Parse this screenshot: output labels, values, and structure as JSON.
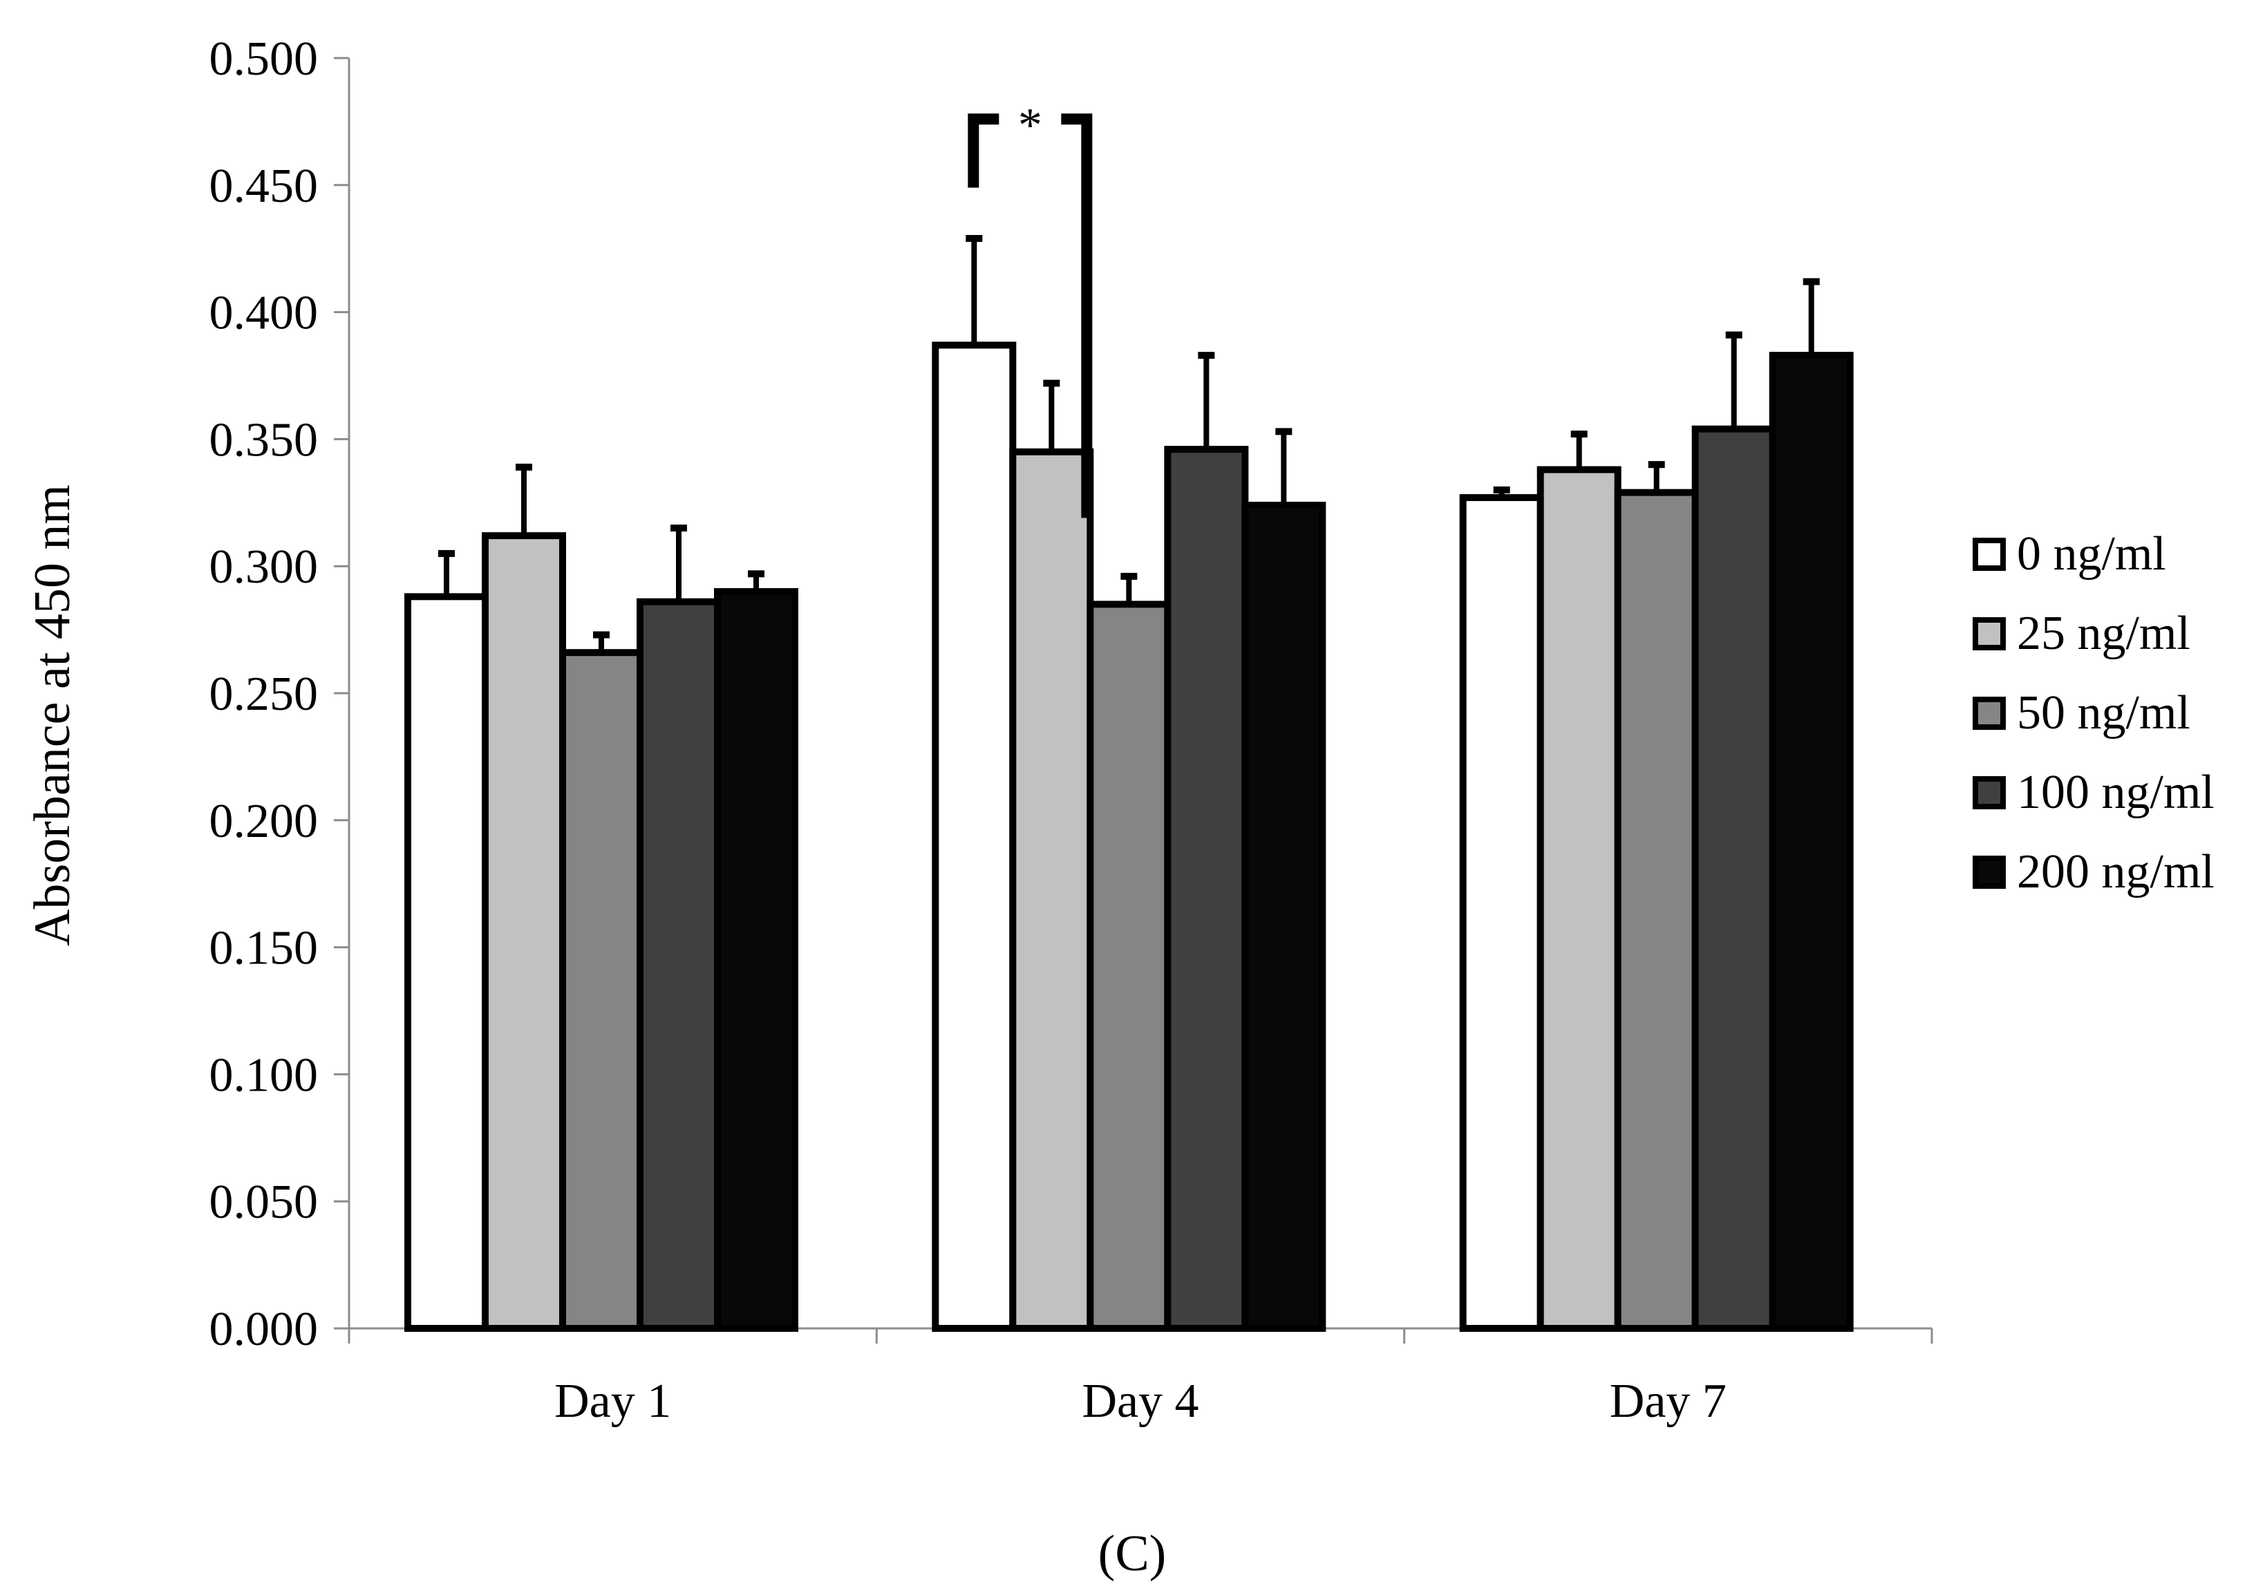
{
  "figure_label": "(C)",
  "chart_data": {
    "type": "bar",
    "ylabel": "Absorbance at 450 nm",
    "xlabel": "",
    "ylim": [
      0,
      0.5
    ],
    "yticks": [
      "0.000",
      "0.050",
      "0.100",
      "0.150",
      "0.200",
      "0.250",
      "0.300",
      "0.350",
      "0.400",
      "0.450",
      "0.500"
    ],
    "categories": [
      "Day 1",
      "Day 4",
      "Day 7"
    ],
    "legend_position": "right",
    "grid": false,
    "series": [
      {
        "name": "0 ng/ml",
        "color": "#ffffff",
        "values": [
          0.288,
          0.387,
          0.327
        ],
        "errors": [
          0.017,
          0.042,
          0.003
        ]
      },
      {
        "name": "25 ng/ml",
        "color": "#c2c1c1",
        "values": [
          0.312,
          0.345,
          0.338
        ],
        "errors": [
          0.027,
          0.027,
          0.014
        ]
      },
      {
        "name": "50 ng/ml",
        "color": "#858585",
        "values": [
          0.266,
          0.285,
          0.329
        ],
        "errors": [
          0.007,
          0.011,
          0.011
        ]
      },
      {
        "name": "100 ng/ml",
        "color": "#404040",
        "values": [
          0.286,
          0.346,
          0.354
        ],
        "errors": [
          0.029,
          0.037,
          0.037
        ]
      },
      {
        "name": "200 ng/ml",
        "color": "#070909",
        "values": [
          0.29,
          0.324,
          0.383
        ],
        "errors": [
          0.007,
          0.029,
          0.029
        ]
      }
    ],
    "annotations": [
      {
        "text": "*",
        "category": "Day 4",
        "from_series": 0,
        "to_series": 2,
        "bracket_y": 0.476
      }
    ]
  }
}
